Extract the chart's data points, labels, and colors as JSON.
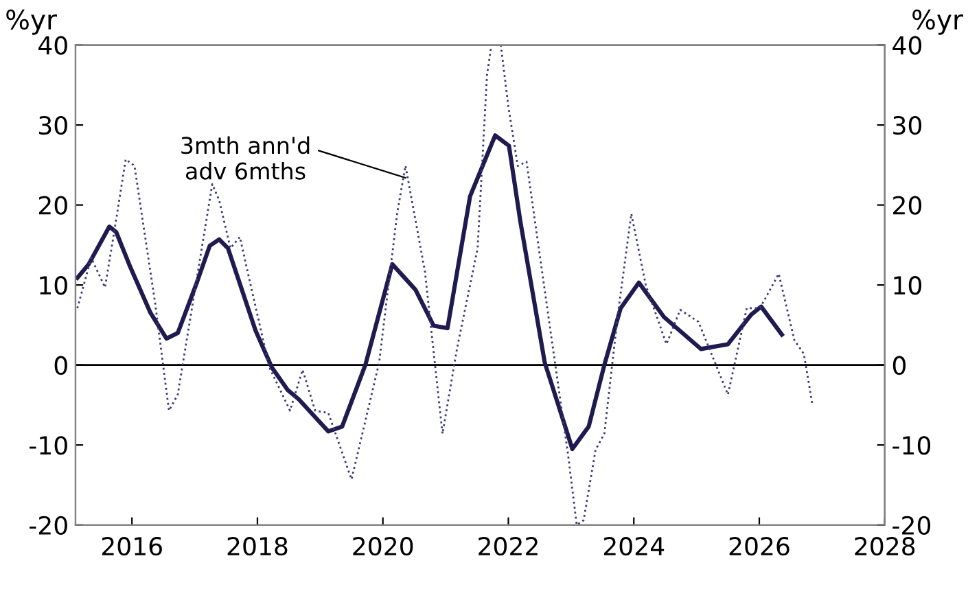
{
  "chart_data": {
    "type": "line",
    "ylabel": "%yr",
    "y2label": "%yr",
    "xlim": [
      2015.1,
      2028
    ],
    "xticks": [
      2016,
      2018,
      2020,
      2022,
      2024,
      2026,
      2028
    ],
    "ylim": [
      -20,
      40
    ],
    "yticks": [
      -20,
      -10,
      0,
      10,
      20,
      30,
      40
    ],
    "y2lim": [
      -20,
      40
    ],
    "y2ticks": [
      -20,
      -10,
      0,
      10,
      20,
      30,
      40
    ],
    "grid": false,
    "legend": false,
    "ref_lines": [
      {
        "axis": "y",
        "value": 0,
        "color": "#000000",
        "line_style": "solid"
      }
    ],
    "series": [
      {
        "color": "#1f1a4f",
        "line_style": "solid",
        "x": [
          2015.13,
          2015.31,
          2015.64,
          2015.75,
          2015.97,
          2016.29,
          2016.55,
          2016.73,
          2017.02,
          2017.24,
          2017.39,
          2017.53,
          2017.97,
          2018.23,
          2018.48,
          2018.66,
          2019.13,
          2019.35,
          2019.72,
          2020.15,
          2020.52,
          2020.81,
          2021.03,
          2021.39,
          2021.79,
          2022.01,
          2022.19,
          2022.58,
          2023.02,
          2023.28,
          2023.53,
          2023.79,
          2024.08,
          2024.48,
          2025.07,
          2025.5,
          2025.87,
          2026.03,
          2026.36
        ],
        "values": [
          10.9,
          12.6,
          17.3,
          16.6,
          12.3,
          6.6,
          3.3,
          4.0,
          10,
          14.9,
          15.7,
          14.6,
          4.3,
          -0.3,
          -3.1,
          -4.3,
          -8.3,
          -7.7,
          0,
          12.6,
          9.4,
          4.9,
          4.6,
          21.1,
          28.7,
          27.4,
          18,
          0.3,
          -10.5,
          -7.7,
          0,
          7.1,
          10.3,
          6,
          2,
          2.6,
          6.3,
          7.3,
          3.8
        ]
      },
      {
        "name": "3mth ann'd\nadv 6mths",
        "color": "#3b3a7a",
        "line_style": "dotted",
        "x": [
          2015.13,
          2015.35,
          2015.57,
          2015.71,
          2015.9,
          2016.04,
          2016.37,
          2016.59,
          2016.73,
          2017.28,
          2017.39,
          2017.57,
          2017.72,
          2017.86,
          2018.19,
          2018.52,
          2018.72,
          2018.92,
          2019.13,
          2019.5,
          2019.94,
          2020.23,
          2020.36,
          2020.67,
          2020.95,
          2021.18,
          2021.51,
          2021.66,
          2021.73,
          2021.88,
          2022.0,
          2022.15,
          2022.29,
          2022.66,
          2022.95,
          2023.09,
          2023.2,
          2023.39,
          2023.53,
          2023.75,
          2023.96,
          2024.19,
          2024.52,
          2024.74,
          2025.03,
          2025.5,
          2025.8,
          2026.01,
          2026.31,
          2026.56,
          2026.71,
          2026.85
        ],
        "values": [
          7.1,
          13.4,
          9.7,
          16.3,
          25.7,
          24.9,
          7.7,
          -5.7,
          -3.7,
          22.6,
          20.6,
          14.6,
          16,
          11.1,
          -0.3,
          -5.7,
          -0.6,
          -5.7,
          -6,
          -14.3,
          0.3,
          19.1,
          24.9,
          11.7,
          -8.6,
          2,
          14.6,
          36.3,
          40,
          40,
          32.3,
          24.9,
          25.4,
          4.9,
          -11.1,
          -20,
          -19.4,
          -10.6,
          -8.6,
          6.6,
          18.9,
          10,
          2.6,
          6.9,
          5.4,
          -3.7,
          7.1,
          7.1,
          11.4,
          3.1,
          1.4,
          -5.1
        ]
      }
    ]
  }
}
